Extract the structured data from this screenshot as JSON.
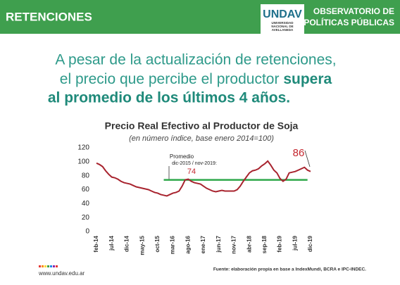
{
  "header": {
    "title": "RETENCIONES",
    "logo": "UNDAV",
    "logo_sub": [
      "UNIVERSIDAD",
      "NACIONAL DE",
      "AVELLANEDA"
    ],
    "observatory": [
      "OBSERVATORIO DE",
      "POLÍTICAS PÚBLICAS"
    ]
  },
  "headline": [
    "A pesar de la actualización de retenciones,",
    "el precio que percibe el productor",
    "supera",
    "al promedio de los últimos 4 años."
  ],
  "footer": {
    "url": "www.undav.edu.ar",
    "source": "Fuente: elaboración propia en base a IndexMundi, BCRA e IPC-INDEC."
  },
  "chart_data": {
    "type": "line",
    "title": "Precio Real Efectivo al Productor de Soja",
    "subtitle": "(en número índice, base enero 2014=100)",
    "average_label": "Promedio",
    "average_period": "dic-2015 / nov-2019:",
    "categories": [
      "feb-14",
      null,
      null,
      null,
      null,
      "jul-14",
      null,
      null,
      null,
      null,
      "dic-14",
      null,
      null,
      null,
      null,
      "may-15",
      null,
      null,
      null,
      null,
      "oct-15",
      null,
      null,
      null,
      null,
      "mar-16",
      null,
      null,
      null,
      null,
      "ago-16",
      null,
      null,
      null,
      null,
      "ene-17",
      null,
      null,
      null,
      null,
      "jun-17",
      null,
      null,
      null,
      null,
      "nov-17",
      null,
      null,
      null,
      null,
      "abr-18",
      null,
      null,
      null,
      null,
      "sep-18",
      null,
      null,
      null,
      null,
      "feb-19",
      null,
      null,
      null,
      null,
      "jul-19",
      null,
      null,
      null,
      null,
      "dic-19"
    ],
    "series": [
      {
        "name": "Precio Real Efectivo",
        "color": "#a8232e",
        "values": [
          98,
          96,
          93,
          87,
          82,
          78,
          77,
          75,
          72,
          70,
          69,
          68,
          66,
          64,
          63,
          62,
          61,
          60,
          58,
          56,
          55,
          53,
          52,
          51,
          53,
          55,
          56,
          58,
          65,
          74,
          75,
          72,
          70,
          69,
          68,
          65,
          62,
          60,
          58,
          57,
          58,
          59,
          58,
          58,
          58,
          58,
          60,
          65,
          72,
          78,
          84,
          87,
          88,
          90,
          94,
          97,
          101,
          95,
          88,
          84,
          76,
          72,
          75,
          84,
          85,
          86,
          88,
          90,
          92,
          88,
          86
        ]
      },
      {
        "name": "Promedio",
        "color": "#2ea84a",
        "values": [
          null,
          null,
          null,
          null,
          null,
          null,
          null,
          null,
          null,
          null,
          null,
          null,
          null,
          null,
          null,
          null,
          null,
          null,
          null,
          null,
          null,
          null,
          74,
          74,
          74,
          74,
          74,
          74,
          74,
          74,
          74,
          74,
          74,
          74,
          74,
          74,
          74,
          74,
          74,
          74,
          74,
          74,
          74,
          74,
          74,
          74,
          74,
          74,
          74,
          74,
          74,
          74,
          74,
          74,
          74,
          74,
          74,
          74,
          74,
          74,
          74,
          74,
          74,
          74,
          74,
          74,
          74,
          74,
          74,
          74,
          null
        ]
      }
    ],
    "ylim": [
      0,
      120
    ],
    "yticks": [
      0,
      20,
      40,
      60,
      80,
      100,
      120
    ],
    "grid": false
  }
}
